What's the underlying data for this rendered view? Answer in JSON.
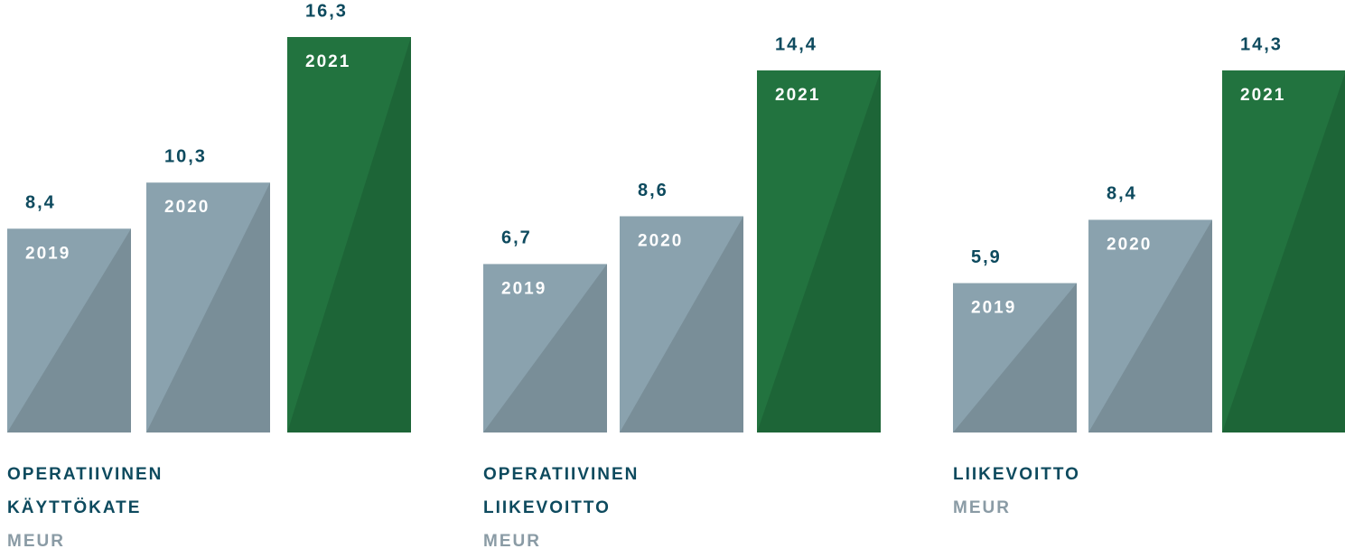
{
  "chart_data": [
    {
      "type": "bar",
      "title": "OPERATIIVINEN KÄYTTÖKATE",
      "subtitle": "MEUR",
      "categories": [
        "2019",
        "2020",
        "2021"
      ],
      "values": [
        8.4,
        10.3,
        16.3
      ],
      "value_labels": [
        "8,4",
        "10,3",
        "16,3"
      ],
      "colors": [
        "#8aa2ae",
        "#8aa2ae",
        "#22733f"
      ]
    },
    {
      "type": "bar",
      "title": "OPERATIIVINEN LIIKEVOITTO",
      "subtitle": "MEUR",
      "categories": [
        "2019",
        "2020",
        "2021"
      ],
      "values": [
        6.7,
        8.6,
        14.4
      ],
      "value_labels": [
        "6,7",
        "8,6",
        "14,4"
      ],
      "colors": [
        "#8aa2ae",
        "#8aa2ae",
        "#22733f"
      ]
    },
    {
      "type": "bar",
      "title": "LIIKEVOITTO",
      "subtitle": "MEUR",
      "categories": [
        "2019",
        "2020",
        "2021"
      ],
      "values": [
        5.9,
        8.4,
        14.3
      ],
      "value_labels": [
        "5,9",
        "8,4",
        "14,3"
      ],
      "colors": [
        "#8aa2ae",
        "#8aa2ae",
        "#22733f"
      ]
    }
  ]
}
